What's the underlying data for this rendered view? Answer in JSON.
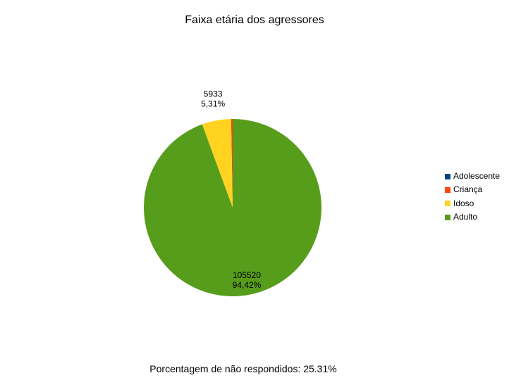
{
  "chart_data": {
    "type": "pie",
    "title": "Faixa etária dos agressores",
    "slices": [
      {
        "label": "Adolescente",
        "value": 0,
        "color": "#004586",
        "display_value": "",
        "display_percent": ""
      },
      {
        "label": "Criança",
        "value": 310,
        "color": "#ff420e",
        "display_value": "",
        "display_percent": ""
      },
      {
        "label": "Idoso",
        "value": 5933,
        "color": "#ffd320",
        "display_value": "5933",
        "display_percent": "5,31%"
      },
      {
        "label": "Adulto",
        "value": 105520,
        "color": "#579d1c",
        "display_value": "105520",
        "display_percent": "94,42%"
      }
    ],
    "legend_position": "right"
  },
  "footer": {
    "note": "Porcentagem de não respondidos: 25.31%"
  }
}
